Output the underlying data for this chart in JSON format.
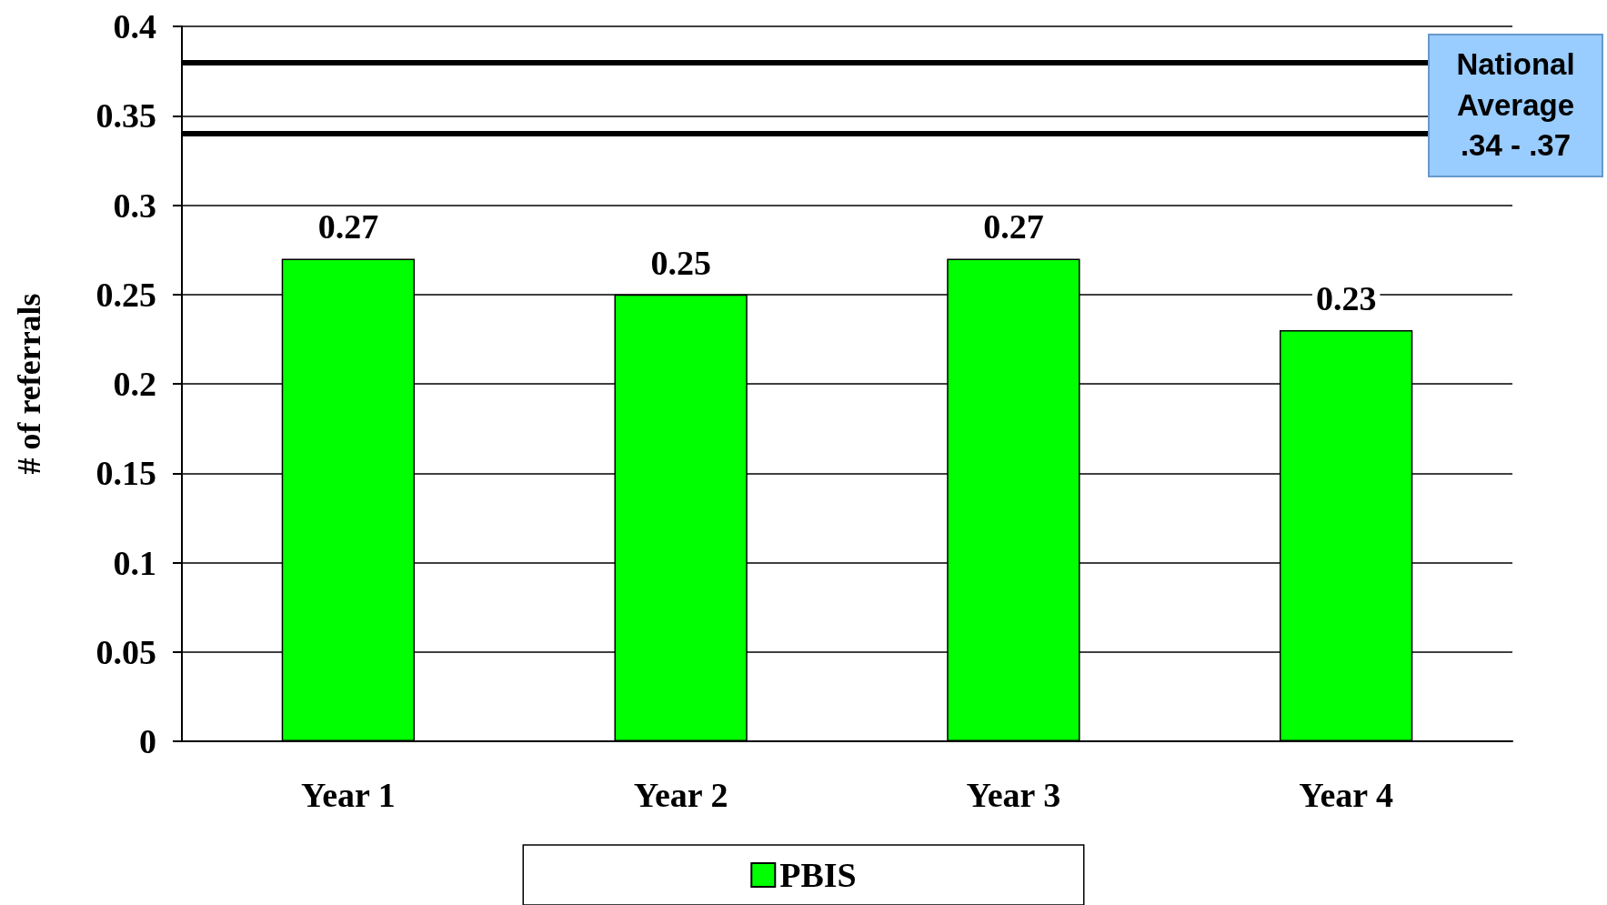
{
  "chart_data": {
    "type": "bar",
    "ylabel": "# of referrals",
    "categories": [
      "Year 1",
      "Year 2",
      "Year 3",
      "Year 4"
    ],
    "series": [
      {
        "name": "PBIS",
        "color": "#00ff00",
        "values": [
          0.27,
          0.25,
          0.27,
          0.23
        ]
      }
    ],
    "ylim": [
      0,
      0.4
    ],
    "yticks": [
      0,
      0.05,
      0.1,
      0.15,
      0.2,
      0.25,
      0.3,
      0.35,
      0.4
    ],
    "ref_lines": [
      {
        "axis": "y",
        "value": 0.38,
        "color": "#000000"
      },
      {
        "axis": "y",
        "value": 0.34,
        "color": "#000000"
      }
    ],
    "annotations": [
      "National Average .34 - .37"
    ],
    "data_labels": true,
    "grid": "y",
    "legend": "bottom"
  }
}
